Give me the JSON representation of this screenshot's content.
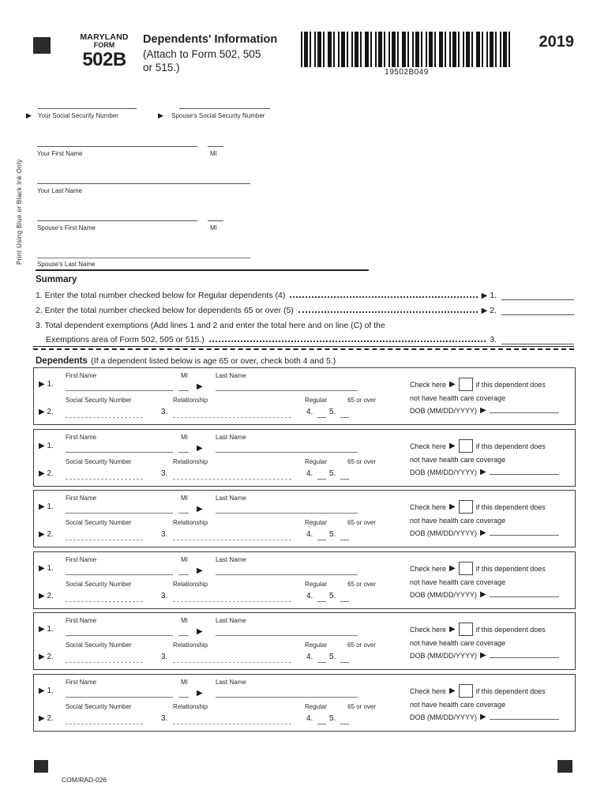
{
  "header": {
    "form_label_line1": "MARYLAND",
    "form_label_line2": "FORM",
    "form_number": "502B",
    "title": "Dependents' Information",
    "subtitle_line1": "(Attach to Form 502, 505",
    "subtitle_line2": "or 515.)",
    "barcode_text": "19502B049",
    "year": "2019"
  },
  "side_note": "Print Using Blue or Black Ink Only",
  "ssn_section": {
    "your_ssn_label": "Your Social Security Number",
    "spouse_ssn_label": "Spouse's Social Security Number"
  },
  "name_fields": {
    "your_first_name": "Your First Name",
    "mi": "MI",
    "your_last_name": "Your Last Name",
    "spouse_first_name": "Spouse's First Name",
    "spouse_last_name": "Spouse's Last Name"
  },
  "summary": {
    "heading": "Summary",
    "rows": [
      {
        "text": "1. Enter the total number checked below for Regular dependents (4)",
        "num": "1."
      },
      {
        "text": "2. Enter the total number checked below for dependents 65 or over (5)",
        "num": "2."
      }
    ],
    "line3_text1": "3. Total dependent exemptions (Add lines 1 and 2 and enter the total here and on line (C) of the",
    "line3_text2": "Exemptions area of Form 502, 505 or 515.)",
    "line3_num": "3."
  },
  "dependents": {
    "heading": "Dependents",
    "heading_note": "(If a dependent listed below is age 65 or over, check both 4 and 5.)",
    "count": 6,
    "labels": {
      "first_name": "First Name",
      "mi": "MI",
      "last_name": "Last Name",
      "ssn": "Social Security Number",
      "relationship": "Relationship",
      "regular": "Regular",
      "over65": "65 or over",
      "num1": "1.",
      "num2": "2.",
      "num3": "3.",
      "num4": "4.",
      "num5": "5.",
      "check_here": "Check here",
      "check_text": "if this dependent does",
      "check_text2": "not have health care coverage",
      "dob": "DOB (MM/DD/YYYY)"
    }
  },
  "footer": {
    "code": "COM/RAD-026"
  }
}
